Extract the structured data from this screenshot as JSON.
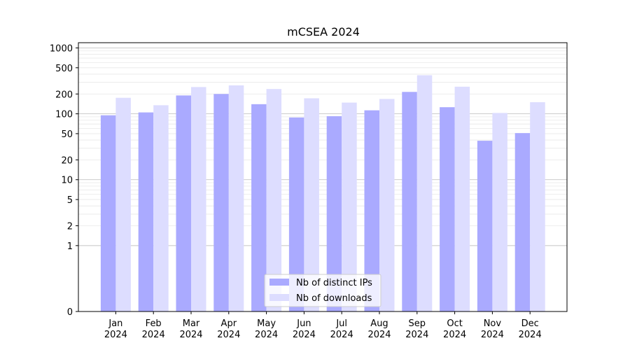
{
  "chart_data": {
    "type": "bar",
    "title": "mCSEA 2024",
    "xlabel": "",
    "ylabel": "",
    "yscale": "symlog",
    "ylim": [
      0,
      1200
    ],
    "grid": true,
    "legend_position": "bottom-center",
    "categories": [
      "Jan\n2024",
      "Feb\n2024",
      "Mar\n2024",
      "Apr\n2024",
      "May\n2024",
      "Jun\n2024",
      "Jul\n2024",
      "Aug\n2024",
      "Sep\n2024",
      "Oct\n2024",
      "Nov\n2024",
      "Dec\n2024"
    ],
    "yticks": [
      0,
      1,
      2,
      5,
      10,
      20,
      50,
      100,
      200,
      500,
      1000
    ],
    "series": [
      {
        "name": "Nb of distinct IPs",
        "color": "#aaaaff",
        "values": [
          95,
          105,
          190,
          200,
          140,
          88,
          92,
          113,
          215,
          126,
          39,
          51
        ]
      },
      {
        "name": "Nb of downloads",
        "color": "#ddddff",
        "values": [
          175,
          135,
          255,
          270,
          238,
          172,
          148,
          168,
          385,
          258,
          103,
          150
        ]
      }
    ]
  }
}
